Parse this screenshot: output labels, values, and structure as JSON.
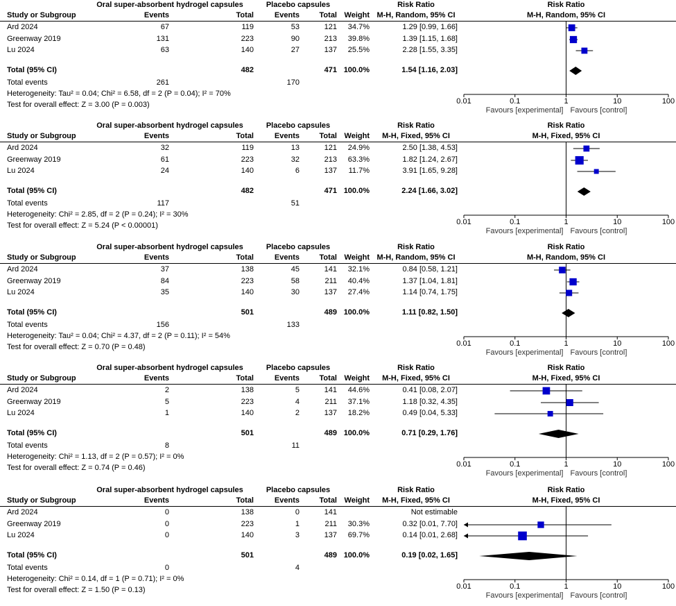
{
  "headers": {
    "study": "Study or Subgroup",
    "events": "Events",
    "total": "Total",
    "placebo": "Placebo capsules",
    "weight": "Weight",
    "risk_ratio": "Risk Ratio",
    "total_events_label": "Total events",
    "total_row_label": "Total (95% CI)",
    "favours_left": "Favours [experimental]",
    "favours_right": "Favours [control]"
  },
  "colors": {
    "study_marker": "#0000cc",
    "summary_diamond": "#000000"
  },
  "chart_data": [
    {
      "type": "forest",
      "scale": "log",
      "xlim": [
        0.01,
        100
      ],
      "ticks": [
        "0.01",
        "0.1",
        "1",
        "10",
        "100"
      ],
      "group_label": "Oral super-absorbent hydrogel capsules",
      "method": "M-H, Random, 95% CI",
      "studies": [
        {
          "name": "Ard 2024",
          "e_events": "67",
          "e_total": "119",
          "c_events": "53",
          "c_total": "121",
          "weight": "34.7%",
          "ci_text": "1.29 [0.99, 1.66]",
          "rr": 1.29,
          "lo": 0.99,
          "hi": 1.66,
          "w": 34.7
        },
        {
          "name": "Greenway 2019",
          "e_events": "131",
          "e_total": "223",
          "c_events": "90",
          "c_total": "213",
          "weight": "39.8%",
          "ci_text": "1.39 [1.15, 1.68]",
          "rr": 1.39,
          "lo": 1.15,
          "hi": 1.68,
          "w": 39.8
        },
        {
          "name": "Lu 2024",
          "e_events": "63",
          "e_total": "140",
          "c_events": "27",
          "c_total": "137",
          "weight": "25.5%",
          "ci_text": "2.28 [1.55, 3.35]",
          "rr": 2.28,
          "lo": 1.55,
          "hi": 3.35,
          "w": 25.5
        }
      ],
      "total": {
        "e_total": "482",
        "c_total": "471",
        "weight": "100.0%",
        "ci_text": "1.54 [1.16, 2.03]",
        "rr": 1.54,
        "lo": 1.16,
        "hi": 2.03
      },
      "total_events": {
        "e": "261",
        "c": "170"
      },
      "heterogeneity": "Heterogeneity: Tau² = 0.04; Chi² = 6.58, df = 2 (P = 0.04); I² = 70%",
      "overall": "Test for overall effect: Z = 3.00 (P = 0.003)"
    },
    {
      "type": "forest",
      "scale": "log",
      "xlim": [
        0.01,
        100
      ],
      "ticks": [
        "0.01",
        "0.1",
        "1",
        "10",
        "100"
      ],
      "group_label": "Oral super-absorbent hydrogel capsules",
      "method": "M-H, Fixed, 95% CI",
      "studies": [
        {
          "name": "Ard 2024",
          "e_events": "32",
          "e_total": "119",
          "c_events": "13",
          "c_total": "121",
          "weight": "24.9%",
          "ci_text": "2.50 [1.38, 4.53]",
          "rr": 2.5,
          "lo": 1.38,
          "hi": 4.53,
          "w": 24.9
        },
        {
          "name": "Greenway 2019",
          "e_events": "61",
          "e_total": "223",
          "c_events": "32",
          "c_total": "213",
          "weight": "63.3%",
          "ci_text": "1.82 [1.24, 2.67]",
          "rr": 1.82,
          "lo": 1.24,
          "hi": 2.67,
          "w": 63.3
        },
        {
          "name": "Lu 2024",
          "e_events": "24",
          "e_total": "140",
          "c_events": "6",
          "c_total": "137",
          "weight": "11.7%",
          "ci_text": "3.91 [1.65, 9.28]",
          "rr": 3.91,
          "lo": 1.65,
          "hi": 9.28,
          "w": 11.7
        }
      ],
      "total": {
        "e_total": "482",
        "c_total": "471",
        "weight": "100.0%",
        "ci_text": "2.24 [1.66, 3.02]",
        "rr": 2.24,
        "lo": 1.66,
        "hi": 3.02
      },
      "total_events": {
        "e": "117",
        "c": "51"
      },
      "heterogeneity": "Heterogeneity: Chi² = 2.85, df = 2 (P = 0.24); I² = 30%",
      "overall": "Test for overall effect: Z = 5.24 (P < 0.00001)"
    },
    {
      "type": "forest",
      "scale": "log",
      "xlim": [
        0.01,
        100
      ],
      "ticks": [
        "0.01",
        "0.1",
        "1",
        "10",
        "100"
      ],
      "group_label": "Oral super-absorbent hydrogel capsules",
      "method": "M-H, Random, 95% CI",
      "studies": [
        {
          "name": "Ard 2024",
          "e_events": "37",
          "e_total": "138",
          "c_events": "45",
          "c_total": "141",
          "weight": "32.1%",
          "ci_text": "0.84 [0.58, 1.21]",
          "rr": 0.84,
          "lo": 0.58,
          "hi": 1.21,
          "w": 32.1
        },
        {
          "name": "Greenway 2019",
          "e_events": "84",
          "e_total": "223",
          "c_events": "58",
          "c_total": "211",
          "weight": "40.4%",
          "ci_text": "1.37 [1.04, 1.81]",
          "rr": 1.37,
          "lo": 1.04,
          "hi": 1.81,
          "w": 40.4
        },
        {
          "name": "Lu 2024",
          "e_events": "35",
          "e_total": "140",
          "c_events": "30",
          "c_total": "137",
          "weight": "27.4%",
          "ci_text": "1.14 [0.74, 1.75]",
          "rr": 1.14,
          "lo": 0.74,
          "hi": 1.75,
          "w": 27.4
        }
      ],
      "total": {
        "e_total": "501",
        "c_total": "489",
        "weight": "100.0%",
        "ci_text": "1.11 [0.82, 1.50]",
        "rr": 1.11,
        "lo": 0.82,
        "hi": 1.5
      },
      "total_events": {
        "e": "156",
        "c": "133"
      },
      "heterogeneity": "Heterogeneity: Tau² = 0.04; Chi² = 4.37, df = 2 (P = 0.11); I² = 54%",
      "overall": "Test for overall effect: Z = 0.70 (P = 0.48)"
    },
    {
      "type": "forest",
      "scale": "log",
      "xlim": [
        0.01,
        100
      ],
      "ticks": [
        "0.01",
        "0.1",
        "1",
        "10",
        "100"
      ],
      "group_label": "Oral super-absorbent hydrogel capsules",
      "method": "M-H, Fixed, 95% CI",
      "studies": [
        {
          "name": "Ard 2024",
          "e_events": "2",
          "e_total": "138",
          "c_events": "5",
          "c_total": "141",
          "weight": "44.6%",
          "ci_text": "0.41 [0.08, 2.07]",
          "rr": 0.41,
          "lo": 0.08,
          "hi": 2.07,
          "w": 44.6
        },
        {
          "name": "Greenway 2019",
          "e_events": "5",
          "e_total": "223",
          "c_events": "4",
          "c_total": "211",
          "weight": "37.1%",
          "ci_text": "1.18 [0.32, 4.35]",
          "rr": 1.18,
          "lo": 0.32,
          "hi": 4.35,
          "w": 37.1
        },
        {
          "name": "Lu 2024",
          "e_events": "1",
          "e_total": "140",
          "c_events": "2",
          "c_total": "137",
          "weight": "18.2%",
          "ci_text": "0.49 [0.04, 5.33]",
          "rr": 0.49,
          "lo": 0.04,
          "hi": 5.33,
          "w": 18.2
        }
      ],
      "total": {
        "e_total": "501",
        "c_total": "489",
        "weight": "100.0%",
        "ci_text": "0.71 [0.29, 1.76]",
        "rr": 0.71,
        "lo": 0.29,
        "hi": 1.76
      },
      "total_events": {
        "e": "8",
        "c": "11"
      },
      "heterogeneity": "Heterogeneity: Chi² = 1.13, df = 2 (P = 0.57); I² = 0%",
      "overall": "Test for overall effect: Z = 0.74 (P = 0.46)"
    },
    {
      "type": "forest",
      "scale": "log",
      "xlim": [
        0.01,
        100
      ],
      "ticks": [
        "0.01",
        "0.1",
        "1",
        "10",
        "100"
      ],
      "group_label": "Oral super-absorbent hydrogel capsules",
      "method": "M-H, Fixed, 95% CI",
      "studies": [
        {
          "name": "Ard 2024",
          "e_events": "0",
          "e_total": "138",
          "c_events": "0",
          "c_total": "141",
          "weight": "",
          "ci_text": "Not estimable",
          "rr": null,
          "lo": null,
          "hi": null,
          "w": 0
        },
        {
          "name": "Greenway 2019",
          "e_events": "0",
          "e_total": "223",
          "c_events": "1",
          "c_total": "211",
          "weight": "30.3%",
          "ci_text": "0.32 [0.01, 7.70]",
          "rr": 0.32,
          "lo": 0.01,
          "hi": 7.7,
          "w": 30.3
        },
        {
          "name": "Lu 2024",
          "e_events": "0",
          "e_total": "140",
          "c_events": "3",
          "c_total": "137",
          "weight": "69.7%",
          "ci_text": "0.14 [0.01, 2.68]",
          "rr": 0.14,
          "lo": 0.01,
          "hi": 2.68,
          "w": 69.7
        }
      ],
      "total": {
        "e_total": "501",
        "c_total": "489",
        "weight": "100.0%",
        "ci_text": "0.19 [0.02, 1.65]",
        "rr": 0.19,
        "lo": 0.02,
        "hi": 1.65
      },
      "total_events": {
        "e": "0",
        "c": "4"
      },
      "heterogeneity": "Heterogeneity: Chi² = 0.14, df = 1 (P = 0.71); I² = 0%",
      "overall": "Test for overall effect: Z = 1.50 (P = 0.13)"
    }
  ]
}
